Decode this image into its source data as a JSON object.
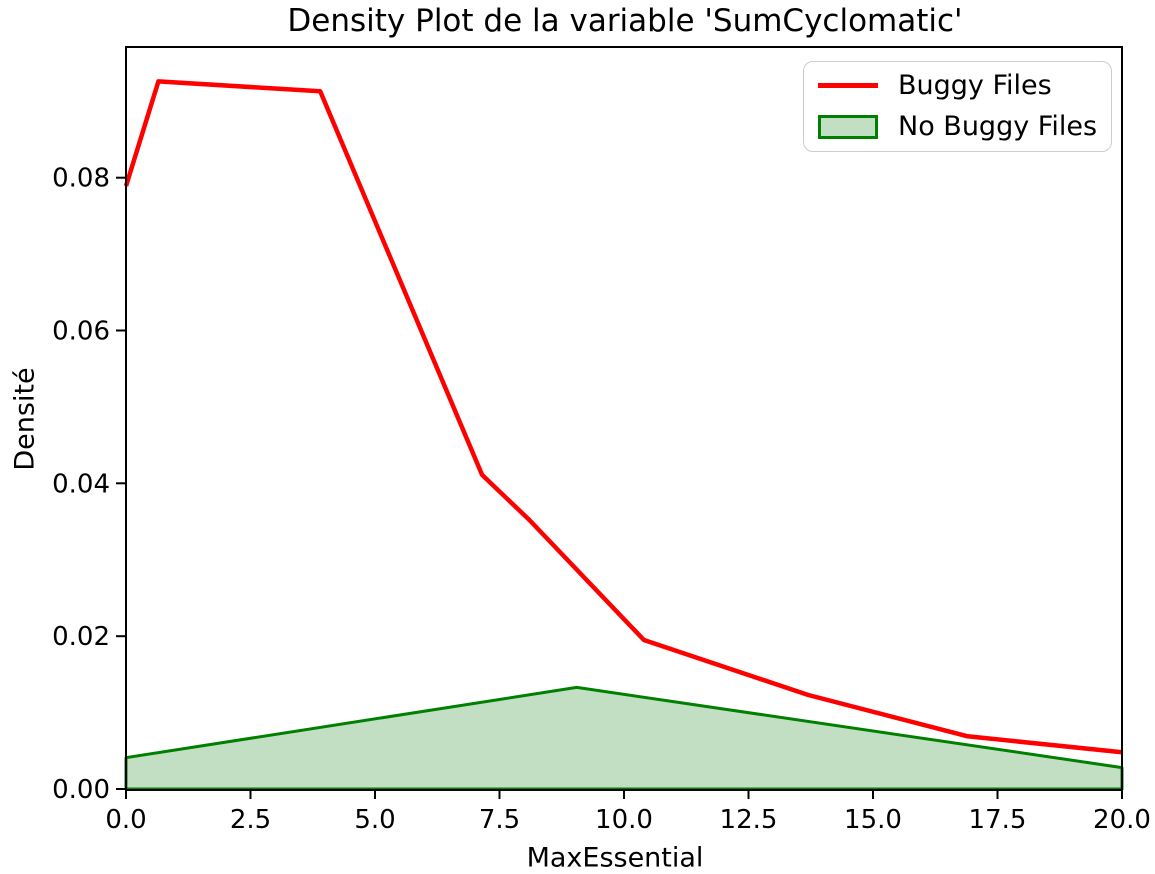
{
  "figure": {
    "title": "Density Plot de la variable 'SumCyclomatic'",
    "xlabel": "MaxEssential",
    "ylabel": "Densité"
  },
  "legend": {
    "position": "upper right",
    "entries": [
      {
        "label": "Buggy Files",
        "swatch": "line",
        "color": "#ff0000"
      },
      {
        "label": "No Buggy Files",
        "swatch": "patch",
        "fill": "#c3dfc3",
        "edge": "#008000"
      }
    ]
  },
  "colors": {
    "background": "#ffffff",
    "axis": "#000000",
    "text": "#000000",
    "buggy_line": "#ff0000",
    "no_buggy_fill": "#c3dfc3",
    "no_buggy_edge": "#008000",
    "legend_border": "#cccccc"
  },
  "chart_data": {
    "type": "line",
    "title": "Density Plot de la variable 'SumCyclomatic'",
    "xlabel": "MaxEssential",
    "ylabel": "Densité",
    "xlim": [
      0,
      20
    ],
    "ylim": [
      0,
      0.0971
    ],
    "x_ticks": [
      0,
      2.5,
      5,
      7.5,
      10,
      12.5,
      15,
      17.5,
      20
    ],
    "x_tick_labels": [
      "0.0",
      "2.5",
      "5.0",
      "7.5",
      "10.0",
      "12.5",
      "15.0",
      "17.5",
      "20.0"
    ],
    "y_ticks": [
      0,
      0.02,
      0.04,
      0.06,
      0.08
    ],
    "y_tick_labels": [
      "0.00",
      "0.02",
      "0.04",
      "0.06",
      "0.08"
    ],
    "grid": false,
    "legend_position": "upper right",
    "series": [
      {
        "name": "Buggy Files",
        "type": "line",
        "color": "#ff0000",
        "linewidth": 4.5,
        "points": [
          [
            0,
            0.0789
          ],
          [
            0.65,
            0.0926
          ],
          [
            3.9,
            0.0913
          ],
          [
            7.15,
            0.0411
          ],
          [
            8.1,
            0.0352
          ],
          [
            10.4,
            0.0195
          ],
          [
            13.7,
            0.0123
          ],
          [
            16.9,
            0.0069
          ],
          [
            20,
            0.0048
          ]
        ]
      },
      {
        "name": "No Buggy Files",
        "type": "area",
        "fill_color": "#c3dfc3",
        "edge_color": "#008000",
        "linewidth": 3,
        "baseline": 0,
        "points": [
          [
            0,
            0.0041
          ],
          [
            9.05,
            0.0133
          ],
          [
            20,
            0.0028
          ]
        ]
      }
    ]
  }
}
